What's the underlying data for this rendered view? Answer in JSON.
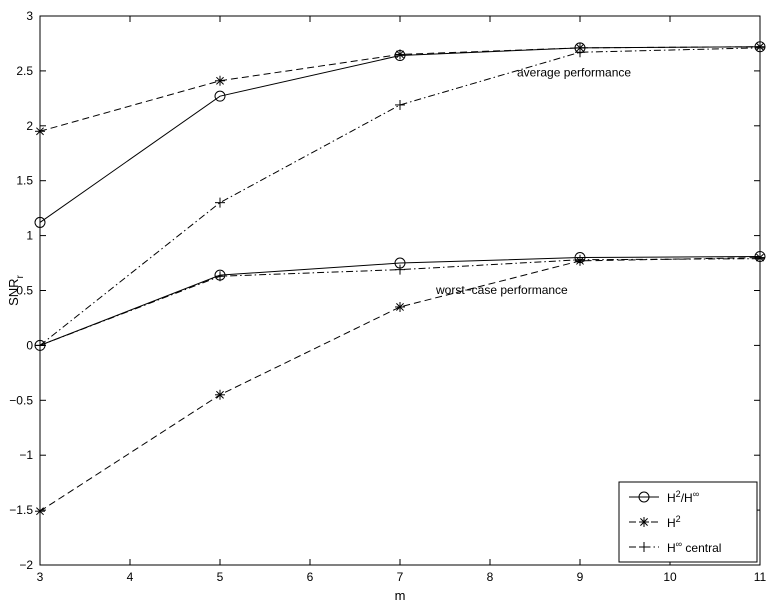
{
  "chart_data": {
    "type": "line",
    "title": "",
    "xlabel": "m",
    "ylabel": "SNR",
    "ylabel_subscript": "r",
    "xlim": [
      3,
      11
    ],
    "ylim": [
      -2,
      3
    ],
    "xticks": [
      3,
      4,
      5,
      6,
      7,
      8,
      9,
      10,
      11
    ],
    "yticks": [
      -2,
      -1.5,
      -1,
      -0.5,
      0,
      0.5,
      1,
      1.5,
      2,
      2.5,
      3
    ],
    "grid": false,
    "legend_position": "bottom-right",
    "annotations": [
      {
        "text": "average performance",
        "x": 8.3,
        "y": 2.45
      },
      {
        "text": "worst−case performance",
        "x": 7.4,
        "y": 0.47
      }
    ],
    "series": [
      {
        "name": "H2/H∞",
        "legend_base": "H",
        "legend_sup1": "2",
        "legend_mid": "/H",
        "legend_sup2": "∞",
        "legend_tail": "",
        "group": "average",
        "style": "solid",
        "marker": "circle",
        "x": [
          3,
          5,
          7,
          9,
          11
        ],
        "values": [
          1.12,
          2.27,
          2.64,
          2.71,
          2.72
        ]
      },
      {
        "name": "H2",
        "legend_base": "H",
        "legend_sup1": "2",
        "legend_mid": "",
        "legend_sup2": "",
        "legend_tail": "",
        "group": "average",
        "style": "dashed",
        "marker": "star",
        "x": [
          3,
          5,
          7,
          9,
          11
        ],
        "values": [
          1.95,
          2.41,
          2.65,
          2.71,
          2.72
        ]
      },
      {
        "name": "H∞ central",
        "legend_base": "H",
        "legend_sup1": "∞",
        "legend_mid": "",
        "legend_sup2": "",
        "legend_tail": " central",
        "group": "average",
        "style": "dashdot",
        "marker": "plus",
        "x": [
          3,
          5,
          7,
          9,
          11
        ],
        "values": [
          0.0,
          1.3,
          2.19,
          2.67,
          2.71
        ]
      },
      {
        "name": "H2/H∞",
        "group": "worst-case",
        "style": "solid",
        "marker": "circle",
        "x": [
          3,
          5,
          7,
          9,
          11
        ],
        "values": [
          0.0,
          0.64,
          0.75,
          0.8,
          0.81
        ]
      },
      {
        "name": "H2",
        "group": "worst-case",
        "style": "dashed",
        "marker": "star",
        "x": [
          3,
          5,
          7,
          9,
          11
        ],
        "values": [
          -1.51,
          -0.45,
          0.35,
          0.77,
          0.8
        ]
      },
      {
        "name": "H∞ central",
        "group": "worst-case",
        "style": "dashdot",
        "marker": "plus",
        "x": [
          3,
          5,
          7,
          9,
          11
        ],
        "values": [
          0.0,
          0.63,
          0.69,
          0.78,
          0.79
        ]
      }
    ],
    "legend": [
      {
        "base": "H",
        "sup1": "2",
        "mid": "/H",
        "sup2": "∞",
        "tail": "",
        "style": "solid",
        "marker": "circle"
      },
      {
        "base": "H",
        "sup1": "2",
        "mid": "",
        "sup2": "",
        "tail": "",
        "style": "dashed",
        "marker": "star"
      },
      {
        "base": "H",
        "sup1": "∞",
        "mid": "",
        "sup2": "",
        "tail": " central",
        "style": "dashdot",
        "marker": "plus"
      }
    ]
  }
}
